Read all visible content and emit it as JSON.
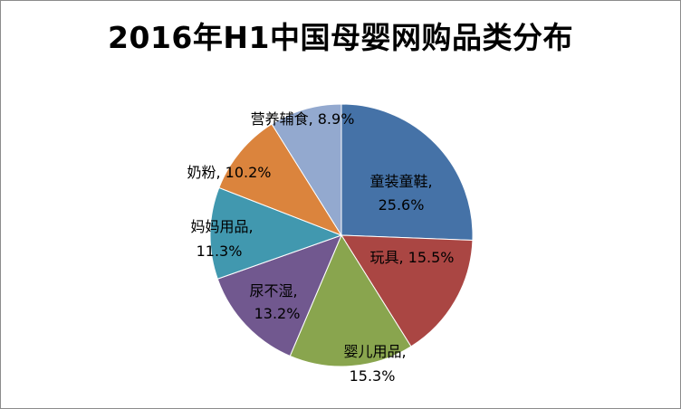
{
  "chart_data": {
    "type": "pie",
    "title": "2016年H1中国母婴网购品类分布",
    "slices": [
      {
        "label": "童装童鞋",
        "value": 25.6,
        "percent_text": "25.6%",
        "color": "#4572a7"
      },
      {
        "label": "玩具",
        "value": 15.5,
        "percent_text": "15.5%",
        "color": "#aa4643"
      },
      {
        "label": "婴儿用品",
        "value": 15.3,
        "percent_text": "15.3%",
        "color": "#89a54e"
      },
      {
        "label": "尿不湿",
        "value": 13.2,
        "percent_text": "13.2%",
        "color": "#71588f"
      },
      {
        "label": "妈妈用品",
        "value": 11.3,
        "percent_text": "11.3%",
        "color": "#4198af"
      },
      {
        "label": "奶粉",
        "value": 10.2,
        "percent_text": "10.2%",
        "color": "#db843d"
      },
      {
        "label": "营养辅食",
        "value": 8.9,
        "percent_text": "8.9%",
        "color": "#93a9cf"
      }
    ],
    "start_angle": "12 o'clock",
    "direction": "clockwise",
    "legend": "none"
  }
}
